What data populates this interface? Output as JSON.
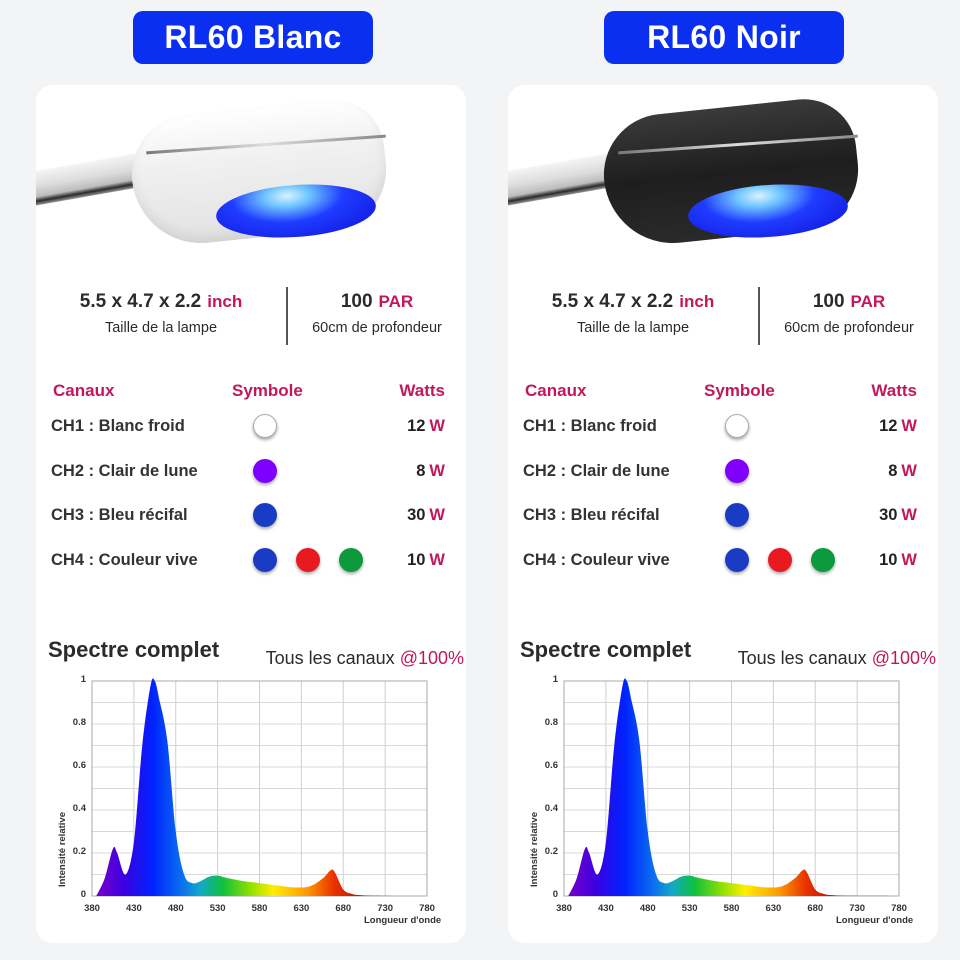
{
  "products": [
    {
      "title": "RL60 Blanc",
      "finish": "white",
      "specs": {
        "size_value": "5.5 x 4.7 x 2.2",
        "size_unit": "inch",
        "size_label": "Taille de la lampe",
        "par_value": "100",
        "par_unit": "PAR",
        "par_label": "60cm de profondeur"
      },
      "channels_table": {
        "headers": [
          "Canaux",
          "Symbole",
          "Watts"
        ],
        "rows": [
          {
            "name": "CH1 : Blanc froid",
            "symbols": [
              "#ffffff"
            ],
            "watts": "12",
            "unit": "W"
          },
          {
            "name": "CH2 : Clair de lune",
            "symbols": [
              "#8000ff"
            ],
            "watts": "8",
            "unit": "W"
          },
          {
            "name": "CH3 : Bleu récifal",
            "symbols": [
              "#1a3bc4"
            ],
            "watts": "30",
            "unit": "W"
          },
          {
            "name": "CH4 : Couleur vive",
            "symbols": [
              "#1a3bc4",
              "#e8191f",
              "#0c9a3c"
            ],
            "watts": "10",
            "unit": "W"
          }
        ]
      },
      "spectrum": {
        "title": "Spectre complet",
        "note_prefix": "Tous les canaux ",
        "note_value": "@100%"
      }
    },
    {
      "title": "RL60 Noir",
      "finish": "black",
      "specs": {
        "size_value": "5.5 x 4.7 x 2.2",
        "size_unit": "inch",
        "size_label": "Taille de la lampe",
        "par_value": "100",
        "par_unit": "PAR",
        "par_label": "60cm de profondeur"
      },
      "channels_table": {
        "headers": [
          "Canaux",
          "Symbole",
          "Watts"
        ],
        "rows": [
          {
            "name": "CH1 : Blanc froid",
            "symbols": [
              "#ffffff"
            ],
            "watts": "12",
            "unit": "W"
          },
          {
            "name": "CH2 : Clair de lune",
            "symbols": [
              "#8000ff"
            ],
            "watts": "8",
            "unit": "W"
          },
          {
            "name": "CH3 : Bleu récifal",
            "symbols": [
              "#1a3bc4"
            ],
            "watts": "30",
            "unit": "W"
          },
          {
            "name": "CH4 : Couleur vive",
            "symbols": [
              "#1a3bc4",
              "#e8191f",
              "#0c9a3c"
            ],
            "watts": "10",
            "unit": "W"
          }
        ]
      },
      "spectrum": {
        "title": "Spectre complet",
        "note_prefix": "Tous les canaux ",
        "note_value": "@100%"
      }
    }
  ],
  "colors": {
    "badge": "#0a2ff0",
    "accent": "#c2185b",
    "background": "#f3f4f6"
  },
  "chart_data": [
    {
      "type": "area",
      "title": "Spectre complet",
      "xlabel": "Longueur d'onde",
      "ylabel": "Intensité relative",
      "xlim": [
        380,
        780
      ],
      "ylim": [
        0,
        1
      ],
      "x_ticks": [
        "380",
        "430",
        "480",
        "530",
        "580",
        "630",
        "680",
        "730",
        "780"
      ],
      "y_ticks": [
        "0",
        "0.2",
        "0.4",
        "0.6",
        "0.8",
        "1"
      ],
      "grid": true,
      "x": [
        385,
        395,
        405,
        410,
        420,
        430,
        440,
        450,
        455,
        460,
        470,
        480,
        490,
        500,
        510,
        520,
        530,
        540,
        560,
        580,
        600,
        620,
        640,
        655,
        665,
        670,
        680,
        690,
        700,
        720,
        780
      ],
      "values": [
        0.0,
        0.08,
        0.22,
        0.2,
        0.1,
        0.25,
        0.7,
        0.98,
        1.0,
        0.92,
        0.72,
        0.3,
        0.1,
        0.06,
        0.07,
        0.09,
        0.095,
        0.085,
        0.07,
        0.06,
        0.05,
        0.04,
        0.045,
        0.08,
        0.12,
        0.11,
        0.03,
        0.01,
        0.004,
        0.001,
        0.0
      ]
    },
    {
      "type": "area",
      "title": "Spectre complet",
      "xlabel": "Longueur d'onde",
      "ylabel": "Intensité relative",
      "xlim": [
        380,
        780
      ],
      "ylim": [
        0,
        1
      ],
      "x_ticks": [
        "380",
        "430",
        "480",
        "530",
        "580",
        "630",
        "680",
        "730",
        "780"
      ],
      "y_ticks": [
        "0",
        "0.2",
        "0.4",
        "0.6",
        "0.8",
        "1"
      ],
      "grid": true,
      "x": [
        385,
        395,
        405,
        410,
        420,
        430,
        440,
        450,
        455,
        460,
        470,
        480,
        490,
        500,
        510,
        520,
        530,
        540,
        560,
        580,
        600,
        620,
        640,
        655,
        665,
        670,
        680,
        690,
        700,
        720,
        780
      ],
      "values": [
        0.0,
        0.08,
        0.22,
        0.2,
        0.1,
        0.25,
        0.7,
        0.98,
        1.0,
        0.92,
        0.72,
        0.3,
        0.1,
        0.06,
        0.07,
        0.09,
        0.095,
        0.085,
        0.07,
        0.06,
        0.05,
        0.04,
        0.045,
        0.08,
        0.12,
        0.11,
        0.03,
        0.01,
        0.004,
        0.001,
        0.0
      ]
    }
  ]
}
